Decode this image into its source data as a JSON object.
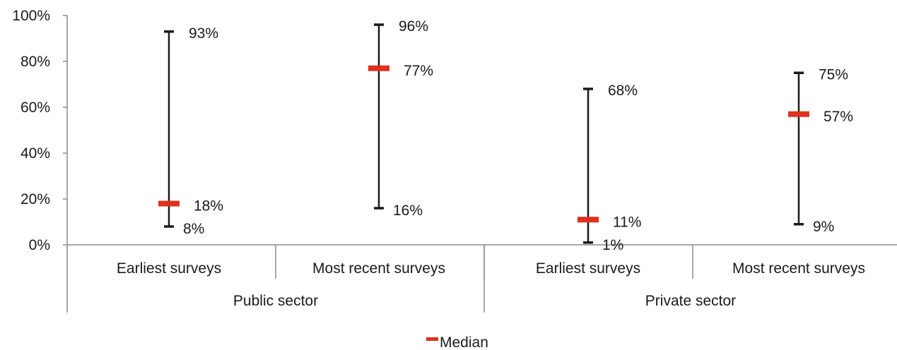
{
  "chart_data": {
    "type": "high-low-median",
    "ylim": [
      0,
      100
    ],
    "y_ticks": [
      "0%",
      "20%",
      "40%",
      "60%",
      "80%",
      "100%"
    ],
    "groups": [
      {
        "label": "Public sector",
        "categories": [
          "Earliest surveys",
          "Most recent surveys"
        ]
      },
      {
        "label": "Private sector",
        "categories": [
          "Earliest surveys",
          "Most recent surveys"
        ]
      }
    ],
    "points": [
      {
        "group": "Public sector",
        "category": "Earliest surveys",
        "high": 93,
        "low": 8,
        "median": 18,
        "high_label": "93%",
        "low_label": "8%",
        "median_label": "18%"
      },
      {
        "group": "Public sector",
        "category": "Most recent surveys",
        "high": 96,
        "low": 16,
        "median": 77,
        "high_label": "96%",
        "low_label": "16%",
        "median_label": "77%"
      },
      {
        "group": "Private sector",
        "category": "Earliest surveys",
        "high": 68,
        "low": 1,
        "median": 11,
        "high_label": "68%",
        "low_label": "1%",
        "median_label": "11%"
      },
      {
        "group": "Private sector",
        "category": "Most recent surveys",
        "high": 75,
        "low": 9,
        "median": 57,
        "high_label": "75%",
        "low_label": "9%",
        "median_label": "57%"
      }
    ],
    "legend": {
      "label": "Median",
      "position": "bottom"
    },
    "colors": {
      "median": "#e0301e",
      "range": "#1a1a1a",
      "axis": "#8c8c8c"
    },
    "grid": false
  }
}
